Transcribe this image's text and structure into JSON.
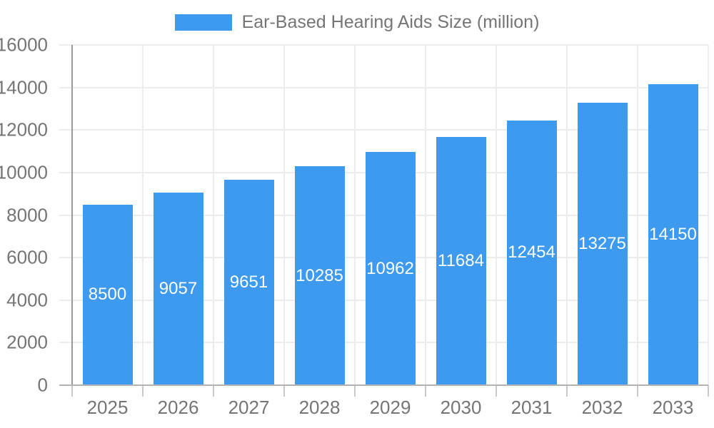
{
  "chart_data": {
    "type": "bar",
    "title": "Ear-Based Hearing Aids Size (million)",
    "series": [
      {
        "name": "Ear-Based Hearing Aids Size (million)",
        "values": [
          8500,
          9057,
          9651,
          10285,
          10962,
          11684,
          12454,
          13275,
          14150
        ]
      }
    ],
    "categories": [
      "2025",
      "2026",
      "2027",
      "2028",
      "2029",
      "2030",
      "2031",
      "2032",
      "2033"
    ],
    "xlabel": "",
    "ylabel": "",
    "ylim": [
      0,
      16000
    ],
    "ytick_step": 2000,
    "yticks": [
      0,
      2000,
      4000,
      6000,
      8000,
      10000,
      12000,
      14000,
      16000
    ],
    "grid": true,
    "legend_position": "top-center",
    "value_labels": "inside-bar-centered-white",
    "colors": {
      "bar": "#3E9AEF",
      "value_label": "#FFFFFF",
      "axis_text": "#757575",
      "gridline": "#ECECEC",
      "tick": "#C9C9C9",
      "y_axis_line": "#999999",
      "x_axis_line": "#B3B3B3",
      "background": "#FFFFFF"
    }
  }
}
